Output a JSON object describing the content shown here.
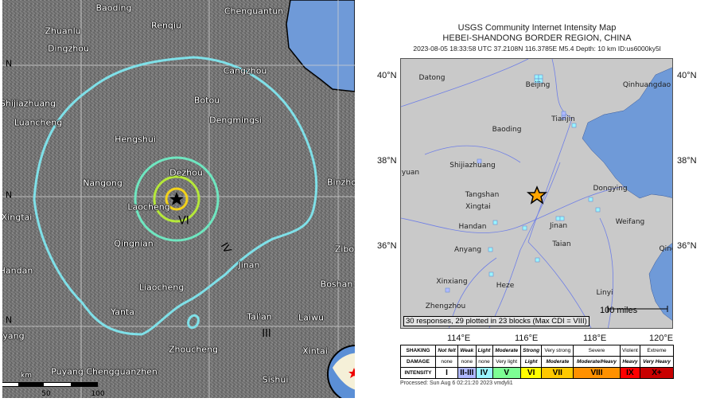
{
  "left_map": {
    "cities": [
      "Baoding",
      "Renqiu",
      "Chenguantun",
      "Zhuanlu",
      "Dingzhou",
      "Cangzhou",
      "Shijiazhuang",
      "Botou",
      "Luancheng",
      "Dengmingsi",
      "Hengshui",
      "Dezhou",
      "Nangong",
      "Binzhou",
      "Laocheng",
      "Xingtai",
      "Qingnian",
      "Zibo",
      "Jinan",
      "Handan",
      "Boshan",
      "Liaocheng",
      "Yanta",
      "Tai'an",
      "Laiwu",
      "yang",
      "Zhoucheng",
      "Xintai",
      "Puyang Chengguanzhen",
      "Sishui"
    ],
    "lat_labels": [
      "N",
      "N",
      "N"
    ],
    "intensity_labels": [
      "VI",
      "IV",
      "III"
    ],
    "scale": {
      "unit": "km",
      "ticks": [
        "50",
        "100"
      ]
    },
    "contour_colors": {
      "III": "#7fe0e8",
      "IV": "#6fe6c0",
      "V": "#b5e83a",
      "VI": "#f2d21b"
    }
  },
  "right_map": {
    "title": "USGS Community Internet Intensity Map",
    "region": "HEBEI-SHANDONG BORDER REGION, CHINA",
    "event": "2023-08-05 18:33:58 UTC 37.2108N 116.3785E M5.4 Depth: 10 km ID:us6000ky5l",
    "cities": [
      "Datong",
      "Beijing",
      "Qinhuangdao",
      "Tianjin",
      "Baoding",
      "Shijiazhuang",
      "aiyuan",
      "Dongying",
      "Tangshan",
      "Xingtai",
      "Handan",
      "Weifang",
      "Jinan",
      "Taian",
      "Anyang",
      "Qing",
      "Xinxiang",
      "Heze",
      "Linyi",
      "Zhengzhou"
    ],
    "lat_labels": [
      "40°N",
      "38°N",
      "36°N"
    ],
    "lon_labels": [
      "114°E",
      "116°E",
      "118°E",
      "120°E"
    ],
    "responses": "30 responses, 29 plotted in 23 blocks (Max CDI = VIII)",
    "scale_label": "100 miles",
    "processed": "Processed: Sun Aug  6 02:21:20 2023 vmdyli1",
    "epicenter_icon": "star-icon"
  },
  "legend": {
    "headers": [
      "SHAKING",
      "DAMAGE",
      "INTENSITY"
    ],
    "shaking": [
      "Not felt",
      "Weak",
      "Light",
      "Moderate",
      "Strong",
      "Very strong",
      "Severe",
      "Violent",
      "Extreme"
    ],
    "damage": [
      "none",
      "none",
      "none",
      "Very light",
      "Light",
      "Moderate",
      "Moderate/Heavy",
      "Heavy",
      "Very Heavy"
    ],
    "intensity": [
      "I",
      "II-III",
      "IV",
      "V",
      "VI",
      "VII",
      "VIII",
      "IX",
      "X+"
    ],
    "colors": [
      "#ffffff",
      "#b0b9ff",
      "#9af5ff",
      "#7dff94",
      "#ffff00",
      "#ffc800",
      "#ff9100",
      "#ff0000",
      "#c80000"
    ]
  }
}
